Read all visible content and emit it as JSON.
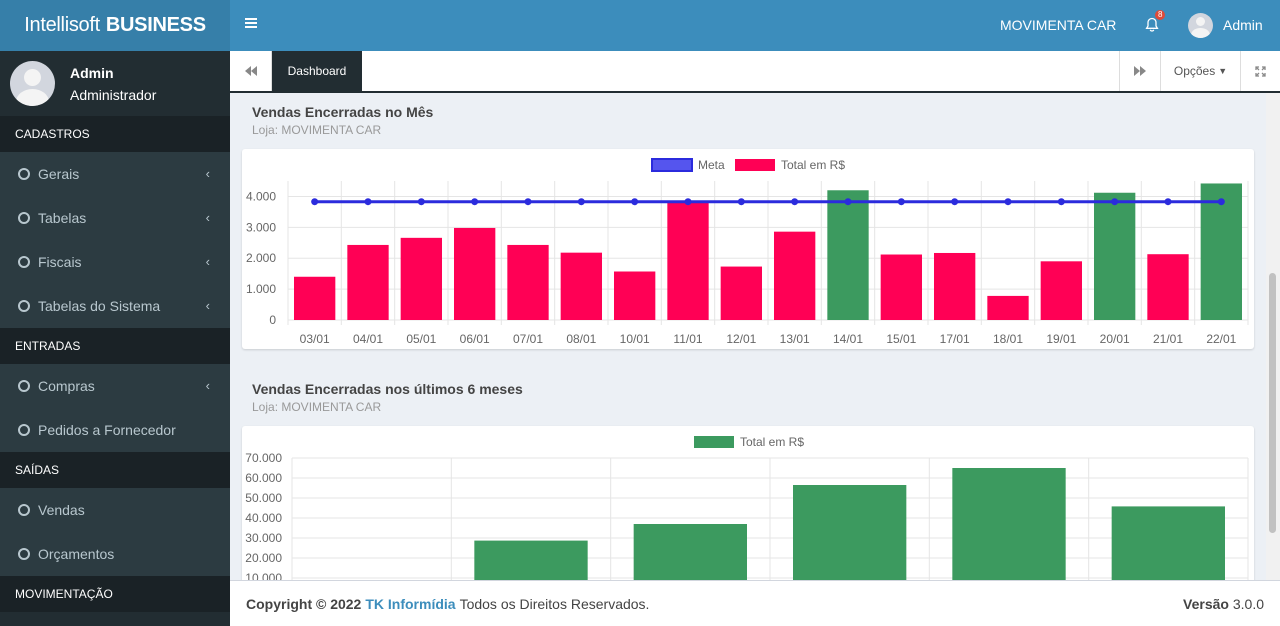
{
  "brand": {
    "light": "Intellisoft",
    "bold": "BUSINESS"
  },
  "user": {
    "name": "Admin",
    "role": "Administrador"
  },
  "sidebar": {
    "sections": [
      {
        "header": "CADASTROS"
      },
      {
        "header": "ENTRADAS"
      },
      {
        "header": "SAÍDAS"
      },
      {
        "header": "MOVIMENTAÇÃO"
      }
    ],
    "items": {
      "gerais": "Gerais",
      "tabelas": "Tabelas",
      "fiscais": "Fiscais",
      "tabelas_sistema": "Tabelas do Sistema",
      "compras": "Compras",
      "pedidos": "Pedidos a Fornecedor",
      "vendas": "Vendas",
      "orcamentos": "Orçamentos"
    }
  },
  "header": {
    "store": "MOVIMENTA CAR",
    "notifications": "8",
    "user": "Admin"
  },
  "tabbar": {
    "active_tab": "Dashboard",
    "options": "Opções"
  },
  "sections": {
    "month": {
      "title": "Vendas Encerradas no Mês",
      "subtitle": "Loja: MOVIMENTA CAR"
    },
    "sixmonths": {
      "title": "Vendas Encerradas nos últimos 6 meses",
      "subtitle": "Loja: MOVIMENTA CAR"
    }
  },
  "footer": {
    "copyright": "Copyright © 2022",
    "company": "TK Informídia",
    "rights": "Todos os Direitos Reservados.",
    "version_label": "Versão",
    "version": "3.0.0"
  },
  "colors": {
    "red": "#ff0055",
    "green": "#3c9a5f",
    "meta": "#2b2bdd"
  },
  "chart_data": [
    {
      "type": "bar",
      "categories": [
        "03/01",
        "04/01",
        "05/01",
        "06/01",
        "07/01",
        "08/01",
        "10/01",
        "11/01",
        "12/01",
        "13/01",
        "14/01",
        "15/01",
        "17/01",
        "18/01",
        "19/01",
        "20/01",
        "21/01",
        "22/01"
      ],
      "series": [
        {
          "name": "Meta",
          "type": "line",
          "values": [
            3830,
            3830,
            3830,
            3830,
            3830,
            3830,
            3830,
            3830,
            3830,
            3830,
            3830,
            3830,
            3830,
            3830,
            3830,
            3830,
            3830,
            3830
          ]
        },
        {
          "name": "Total em R$",
          "type": "bar",
          "values": [
            1400,
            2430,
            2660,
            2980,
            2430,
            2180,
            1570,
            3800,
            1730,
            2860,
            4200,
            2120,
            2170,
            780,
            1900,
            4120,
            2130,
            4420
          ]
        }
      ],
      "ylim": [
        0,
        4500
      ],
      "yticks": [
        "0",
        "1.000",
        "2.000",
        "3.000",
        "4.000"
      ],
      "legend": "top"
    },
    {
      "type": "bar",
      "categories": [
        "",
        "",
        "",
        "",
        "",
        ""
      ],
      "series": [
        {
          "name": "Total em R$",
          "values": [
            0,
            28700,
            37000,
            56500,
            65000,
            45800
          ]
        }
      ],
      "ylim": [
        0,
        70000
      ],
      "yticks": [
        "10.000",
        "20.000",
        "30.000",
        "40.000",
        "50.000",
        "60.000",
        "70.000"
      ],
      "legend": "top"
    }
  ]
}
